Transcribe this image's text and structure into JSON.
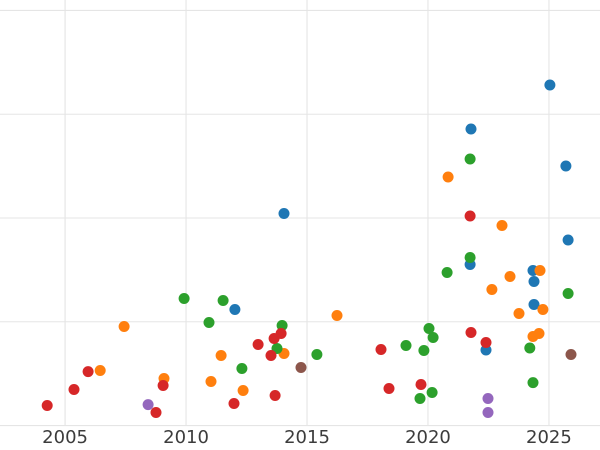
{
  "figure": {
    "background": "#ffffff",
    "grid_color": "#e5e5e5",
    "tick_label_color": "#3c3c3c",
    "tick_font_size": 18,
    "marker_radius": 5.5
  },
  "chart_data": {
    "type": "scatter",
    "title": "",
    "xlabel": "",
    "ylabel": "",
    "grid": true,
    "legend": "none",
    "x_ticks": [
      2005,
      2010,
      2015,
      2020,
      2025
    ],
    "x_tick_labels": [
      "2005",
      "2010",
      "2015",
      "2020",
      "2025"
    ],
    "xlim": [
      2002.31,
      2027.11
    ],
    "ylim": [
      -0.236,
      4.101
    ],
    "y_gridline_values": [
      0,
      1,
      2,
      3,
      4
    ],
    "y_tick_labels": [],
    "series": [
      {
        "name": "blue",
        "color": "#1f77b4",
        "points": [
          [
            2012.02,
            1.118
          ],
          [
            2014.05,
            2.043
          ],
          [
            2021.74,
            1.552
          ],
          [
            2021.78,
            2.858
          ],
          [
            2022.4,
            0.728
          ],
          [
            2024.34,
            1.494
          ],
          [
            2024.38,
            1.388
          ],
          [
            2024.38,
            1.166
          ],
          [
            2025.04,
            3.282
          ],
          [
            2025.7,
            2.501
          ],
          [
            2025.79,
            1.788
          ]
        ]
      },
      {
        "name": "orange",
        "color": "#ff7f0e",
        "points": [
          [
            2006.45,
            0.53
          ],
          [
            2007.44,
            0.954
          ],
          [
            2009.09,
            0.453
          ],
          [
            2011.03,
            0.424
          ],
          [
            2011.45,
            0.675
          ],
          [
            2012.36,
            0.337
          ],
          [
            2014.05,
            0.694
          ],
          [
            2016.24,
            1.06
          ],
          [
            2020.83,
            2.395
          ],
          [
            2022.64,
            1.311
          ],
          [
            2023.06,
            1.928
          ],
          [
            2023.39,
            1.436
          ],
          [
            2023.76,
            1.08
          ],
          [
            2024.34,
            0.858
          ],
          [
            2024.59,
            0.887
          ],
          [
            2024.63,
            1.494
          ],
          [
            2024.75,
            1.118
          ]
        ]
      },
      {
        "name": "green",
        "color": "#2ca02c",
        "points": [
          [
            2009.92,
            1.224
          ],
          [
            2010.95,
            0.993
          ],
          [
            2011.53,
            1.205
          ],
          [
            2012.31,
            0.549
          ],
          [
            2013.76,
            0.742
          ],
          [
            2013.97,
            0.964
          ],
          [
            2015.41,
            0.684
          ],
          [
            2019.09,
            0.771
          ],
          [
            2019.67,
            0.26
          ],
          [
            2019.83,
            0.723
          ],
          [
            2020.04,
            0.935
          ],
          [
            2020.17,
            0.318
          ],
          [
            2020.21,
            0.848
          ],
          [
            2020.79,
            1.475
          ],
          [
            2021.74,
            2.569
          ],
          [
            2021.74,
            1.619
          ],
          [
            2024.21,
            0.747
          ],
          [
            2024.34,
            0.414
          ],
          [
            2025.79,
            1.272
          ]
        ]
      },
      {
        "name": "red",
        "color": "#d62728",
        "points": [
          [
            2004.26,
            0.193
          ],
          [
            2005.37,
            0.347
          ],
          [
            2005.95,
            0.52
          ],
          [
            2008.76,
            0.125
          ],
          [
            2009.05,
            0.386
          ],
          [
            2011.98,
            0.212
          ],
          [
            2012.98,
            0.781
          ],
          [
            2013.51,
            0.675
          ],
          [
            2013.64,
            0.839
          ],
          [
            2013.93,
            0.887
          ],
          [
            2013.68,
            0.289
          ],
          [
            2018.06,
            0.733
          ],
          [
            2018.39,
            0.357
          ],
          [
            2019.71,
            0.395
          ],
          [
            2021.74,
            2.019
          ],
          [
            2021.78,
            0.896
          ],
          [
            2022.4,
            0.8
          ]
        ]
      },
      {
        "name": "purple",
        "color": "#9467bd",
        "points": [
          [
            2008.43,
            0.202
          ],
          [
            2022.48,
            0.26
          ],
          [
            2022.48,
            0.125
          ]
        ]
      },
      {
        "name": "brown",
        "color": "#8c564b",
        "points": [
          [
            2014.75,
            0.559
          ],
          [
            2025.91,
            0.684
          ]
        ]
      }
    ]
  }
}
